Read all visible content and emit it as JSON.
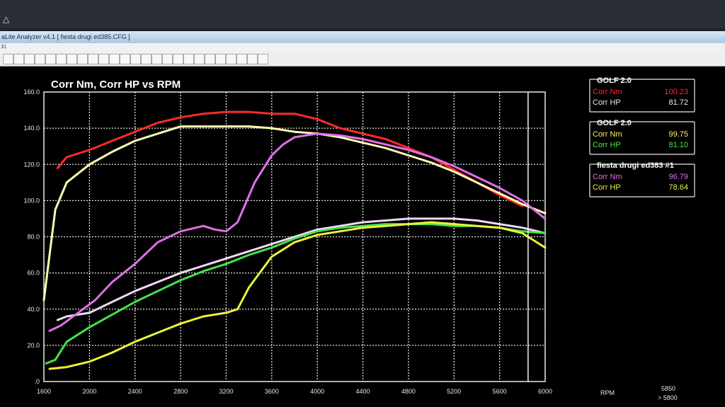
{
  "window": {
    "title": "aLite Analyzer v4.1 [ fiesta drugi ed385.CFG ]",
    "menu": [
      "Fi"
    ],
    "toolbar_icons": [
      "btn",
      "btn",
      "btn",
      "btn",
      "btn",
      "btn",
      "btn",
      "btn",
      "btn",
      "btn",
      "btn",
      "btn",
      "btn",
      "btn",
      "btn",
      "btn",
      "btn",
      "btn",
      "btn",
      "btn",
      "btn",
      "btn",
      "btn",
      "btn",
      "btn"
    ]
  },
  "chart_data": {
    "type": "line",
    "title": "Corr Nm, Corr HP vs RPM",
    "xlabel": "",
    "ylabel": "",
    "xlim": [
      1600,
      6000
    ],
    "ylim": [
      0,
      160
    ],
    "xticks": [
      "1600",
      "2000",
      "2400",
      "2800",
      "3200",
      "3600",
      "4000",
      "4400",
      "4800",
      "5200",
      "5600",
      "6000"
    ],
    "yticks": [
      ".0",
      "20.0",
      "40.0",
      "60.0",
      "80.0",
      "100.0",
      "120.0",
      "140.0",
      "160.0"
    ],
    "x_axis_unit": "RPM",
    "cursor": {
      "rpm": 5850,
      "rpm_text": "5850",
      "range_text": "> 5800"
    },
    "grid": true,
    "series": [
      {
        "name": "GOLF 2.0 Corr Nm",
        "color": "#ff2a2a",
        "x": [
          1720,
          1800,
          2000,
          2200,
          2400,
          2600,
          2800,
          3000,
          3200,
          3400,
          3600,
          3800,
          4000,
          4200,
          4400,
          4600,
          4800,
          5000,
          5200,
          5400,
          5600,
          5800
        ],
        "y": [
          118,
          124,
          128,
          133,
          138,
          143,
          146,
          148,
          149,
          149,
          148,
          148,
          145,
          140,
          137,
          134,
          129,
          124,
          117,
          110,
          103,
          97
        ]
      },
      {
        "name": "GOLF 2.0 Corr HP",
        "color": "#f0d8f4",
        "x": [
          1720,
          1800,
          2000,
          2200,
          2400,
          2600,
          2800,
          3000,
          3200,
          3400,
          3600,
          3800,
          4000,
          4200,
          4400,
          4600,
          4800,
          5000,
          5200,
          5400,
          5600,
          5800,
          6000
        ],
        "y": [
          34,
          36,
          38,
          44,
          50,
          55,
          60,
          64,
          68,
          72,
          76,
          80,
          84,
          86,
          88,
          89,
          90,
          90,
          90,
          89,
          87,
          85,
          82
        ]
      },
      {
        "name": "GOLF 2.0 Corr Nm (2)",
        "color": "#fffcb0",
        "x": [
          1600,
          1650,
          1700,
          1800,
          2000,
          2200,
          2400,
          2600,
          2800,
          3000,
          3200,
          3400,
          3600,
          3800,
          4000,
          4200,
          4400,
          4600,
          4800,
          5000,
          5200,
          5400,
          5600,
          5800,
          6000
        ],
        "y": [
          45,
          70,
          95,
          110,
          120,
          127,
          133,
          137,
          141,
          141,
          141,
          141,
          140,
          138,
          137,
          135,
          132,
          129,
          125,
          121,
          116,
          110,
          104,
          98,
          93
        ]
      },
      {
        "name": "GOLF 2.0 Corr HP (2)",
        "color": "#44e24a",
        "x": [
          1620,
          1700,
          1800,
          2000,
          2200,
          2400,
          2600,
          2800,
          3000,
          3200,
          3400,
          3600,
          3800,
          4000,
          4200,
          4400,
          4600,
          4800,
          5000,
          5200,
          5400,
          5600,
          5800,
          6000
        ],
        "y": [
          10,
          12,
          22,
          30,
          37,
          44,
          50,
          56,
          61,
          65,
          70,
          74,
          79,
          83,
          85,
          86,
          87,
          87,
          87,
          86,
          86,
          85,
          83,
          82
        ]
      },
      {
        "name": "fiesta drugi ed383 #1 Corr Nm",
        "color": "#e070e8",
        "x": [
          1650,
          1750,
          1900,
          2050,
          2200,
          2400,
          2600,
          2800,
          3000,
          3100,
          3200,
          3300,
          3450,
          3600,
          3700,
          3800,
          4000,
          4200,
          4400,
          4600,
          4800,
          5000,
          5200,
          5400,
          5600,
          5800,
          6000
        ],
        "y": [
          28,
          31,
          38,
          45,
          55,
          65,
          77,
          83,
          86,
          84,
          83,
          88,
          110,
          125,
          131,
          135,
          137,
          136,
          134,
          131,
          128,
          124,
          119,
          113,
          107,
          100,
          90
        ]
      },
      {
        "name": "fiesta drugi ed383 #1 Corr HP",
        "color": "#ecf23a",
        "x": [
          1650,
          1800,
          2000,
          2200,
          2400,
          2600,
          2800,
          3000,
          3200,
          3300,
          3400,
          3600,
          3800,
          4000,
          4200,
          4400,
          4600,
          4800,
          5000,
          5200,
          5400,
          5600,
          5800,
          6000
        ],
        "y": [
          7,
          8,
          11,
          16,
          22,
          27,
          32,
          36,
          38,
          40,
          52,
          69,
          77,
          81,
          83,
          85,
          86,
          87,
          88,
          87,
          86,
          85,
          82,
          74
        ]
      }
    ]
  },
  "legend": {
    "panels": [
      {
        "title": "GOLF 2.0",
        "rows": [
          {
            "label": "Corr Nm",
            "value": "100.23",
            "label_color": "#ff2a2a",
            "value_color": "#ff2a2a"
          },
          {
            "label": "Corr HP",
            "value": "81.72",
            "label_color": "#f3e3f7",
            "value_color": "#f3e3f7"
          }
        ]
      },
      {
        "title": "GOLF 2.0",
        "rows": [
          {
            "label": "Corr Nm",
            "value": "99.75",
            "label_color": "#fff46a",
            "value_color": "#fff46a"
          },
          {
            "label": "Corr HP",
            "value": "81.10",
            "label_color": "#47ea4a",
            "value_color": "#47ea4a"
          }
        ]
      },
      {
        "title": "fiesta drugi ed383   #1",
        "rows": [
          {
            "label": "Corr Nm",
            "value": "96.79",
            "label_color": "#e070e8",
            "value_color": "#e070e8"
          },
          {
            "label": "Corr HP",
            "value": "78.64",
            "label_color": "#ecf23a",
            "value_color": "#ecf23a"
          }
        ]
      }
    ]
  }
}
